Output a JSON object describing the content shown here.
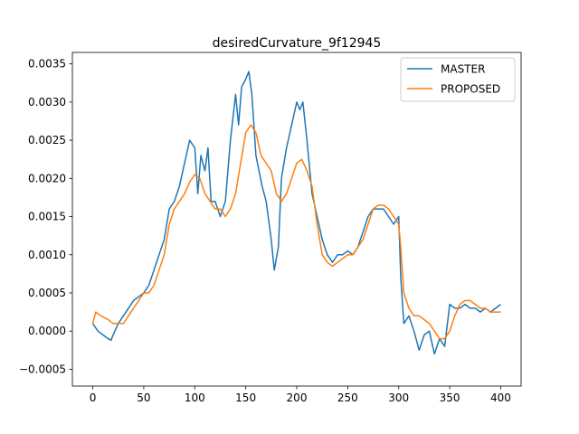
{
  "chart_data": {
    "type": "line",
    "title": "desiredCurvature_9f12945",
    "xlabel": "",
    "ylabel": "",
    "xlim": [
      -20,
      420
    ],
    "ylim": [
      -0.00072,
      0.00365
    ],
    "xticks": [
      0,
      50,
      100,
      150,
      200,
      250,
      300,
      350,
      400
    ],
    "xtick_labels": [
      "0",
      "50",
      "100",
      "150",
      "200",
      "250",
      "300",
      "350",
      "400"
    ],
    "yticks": [
      -0.0005,
      0.0,
      0.0005,
      0.001,
      0.0015,
      0.002,
      0.0025,
      0.003,
      0.0035
    ],
    "ytick_labels": [
      "−0.0005",
      "0.0000",
      "0.0005",
      "0.0010",
      "0.0015",
      "0.0020",
      "0.0025",
      "0.0030",
      "0.0035"
    ],
    "legend_position": "top-right",
    "grid": false,
    "series": [
      {
        "name": "MASTER",
        "color": "#1f77b4",
        "x": [
          0,
          5,
          10,
          15,
          18,
          20,
          25,
          30,
          35,
          40,
          45,
          50,
          55,
          60,
          65,
          70,
          75,
          80,
          85,
          90,
          95,
          100,
          103,
          106,
          110,
          113,
          116,
          120,
          125,
          130,
          135,
          140,
          143,
          146,
          150,
          153,
          156,
          160,
          163,
          166,
          170,
          175,
          178,
          182,
          185,
          190,
          195,
          200,
          203,
          206,
          210,
          215,
          220,
          225,
          230,
          235,
          240,
          245,
          250,
          255,
          260,
          265,
          270,
          275,
          280,
          285,
          290,
          295,
          300,
          302,
          305,
          310,
          315,
          320,
          325,
          330,
          335,
          340,
          345,
          350,
          355,
          360,
          365,
          370,
          375,
          380,
          385,
          390,
          395,
          400
        ],
        "y": [
          0.0001,
          0.0,
          -5e-05,
          -0.0001,
          -0.00012,
          -5e-05,
          0.0001,
          0.0002,
          0.0003,
          0.0004,
          0.00045,
          0.0005,
          0.0006,
          0.0008,
          0.001,
          0.0012,
          0.0016,
          0.0017,
          0.0019,
          0.0022,
          0.0025,
          0.0024,
          0.0018,
          0.0023,
          0.0021,
          0.0024,
          0.0017,
          0.0017,
          0.0015,
          0.0017,
          0.0025,
          0.0031,
          0.0027,
          0.0032,
          0.0033,
          0.0034,
          0.0031,
          0.0023,
          0.0021,
          0.0019,
          0.0017,
          0.0012,
          0.0008,
          0.0011,
          0.002,
          0.0024,
          0.0027,
          0.003,
          0.0029,
          0.003,
          0.0025,
          0.0018,
          0.0015,
          0.0012,
          0.001,
          0.0009,
          0.001,
          0.001,
          0.00105,
          0.001,
          0.0011,
          0.0013,
          0.0015,
          0.0016,
          0.0016,
          0.0016,
          0.0015,
          0.0014,
          0.0015,
          0.0007,
          0.0001,
          0.0002,
          0.0,
          -0.00025,
          -5e-05,
          0.0,
          -0.0003,
          -0.0001,
          -0.0002,
          0.00035,
          0.0003,
          0.0003,
          0.00035,
          0.0003,
          0.0003,
          0.00025,
          0.0003,
          0.00025,
          0.0003,
          0.00035
        ]
      },
      {
        "name": "PROPOSED",
        "color": "#ff7f0e",
        "x": [
          0,
          3,
          8,
          15,
          20,
          25,
          30,
          35,
          40,
          45,
          50,
          55,
          60,
          65,
          70,
          75,
          80,
          85,
          90,
          95,
          100,
          105,
          110,
          115,
          120,
          125,
          130,
          135,
          140,
          145,
          150,
          155,
          160,
          165,
          170,
          175,
          180,
          185,
          190,
          195,
          200,
          205,
          210,
          215,
          220,
          225,
          230,
          235,
          240,
          245,
          250,
          255,
          260,
          265,
          270,
          275,
          280,
          285,
          290,
          295,
          300,
          302,
          305,
          310,
          315,
          320,
          325,
          330,
          335,
          340,
          345,
          350,
          355,
          360,
          365,
          370,
          375,
          380,
          385,
          390,
          395,
          400
        ],
        "y": [
          0.0001,
          0.00025,
          0.0002,
          0.00015,
          0.0001,
          0.0001,
          0.0001,
          0.0002,
          0.0003,
          0.0004,
          0.0005,
          0.0005,
          0.0006,
          0.0008,
          0.001,
          0.0014,
          0.0016,
          0.0017,
          0.0018,
          0.00195,
          0.00205,
          0.002,
          0.0018,
          0.0017,
          0.0016,
          0.0016,
          0.0015,
          0.0016,
          0.0018,
          0.0022,
          0.0026,
          0.0027,
          0.0026,
          0.0023,
          0.0022,
          0.0021,
          0.0018,
          0.0017,
          0.0018,
          0.002,
          0.0022,
          0.00225,
          0.0021,
          0.0019,
          0.0014,
          0.001,
          0.0009,
          0.00085,
          0.0009,
          0.00095,
          0.001,
          0.001,
          0.0011,
          0.0012,
          0.0014,
          0.0016,
          0.00165,
          0.00165,
          0.0016,
          0.0015,
          0.0014,
          0.0011,
          0.0005,
          0.0003,
          0.0002,
          0.0002,
          0.00015,
          0.0001,
          0.0,
          -0.0001,
          -0.0001,
          0.0,
          0.0002,
          0.00035,
          0.0004,
          0.0004,
          0.00035,
          0.0003,
          0.0003,
          0.00025,
          0.00025,
          0.00025
        ]
      }
    ]
  }
}
